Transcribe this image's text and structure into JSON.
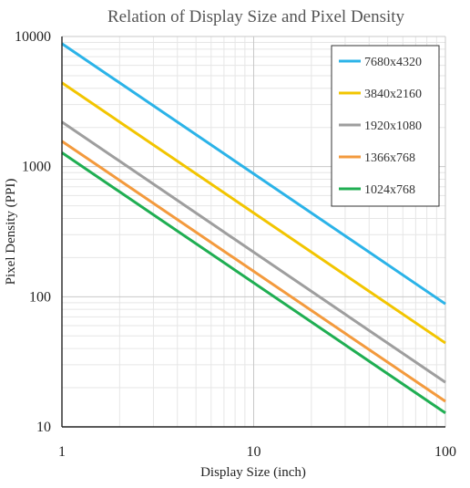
{
  "chart_data": {
    "type": "line",
    "title": "Relation of Display Size and Pixel Density",
    "xlabel": "Display Size (inch)",
    "ylabel": "Pixel Density (PPI)",
    "x_scale": "log",
    "y_scale": "log",
    "xlim": [
      1,
      100
    ],
    "ylim": [
      10,
      10000
    ],
    "x_ticks": [
      "1",
      "10",
      "100"
    ],
    "y_ticks": [
      "10",
      "100",
      "1000",
      "10000"
    ],
    "grid": true,
    "legend_position": "top-right",
    "x": [
      1,
      100
    ],
    "series": [
      {
        "name": "7680x4320",
        "color": "#2bb3e8",
        "values": [
          8812,
          88.1
        ]
      },
      {
        "name": "3840x2160",
        "color": "#f2c500",
        "values": [
          4406,
          44.1
        ]
      },
      {
        "name": "1920x1080",
        "color": "#9e9e9e",
        "values": [
          2203,
          22.0
        ]
      },
      {
        "name": "1366x768",
        "color": "#f39a3d",
        "values": [
          1567,
          15.7
        ]
      },
      {
        "name": "1024x768",
        "color": "#1fae52",
        "values": [
          1280,
          12.8
        ]
      }
    ]
  }
}
